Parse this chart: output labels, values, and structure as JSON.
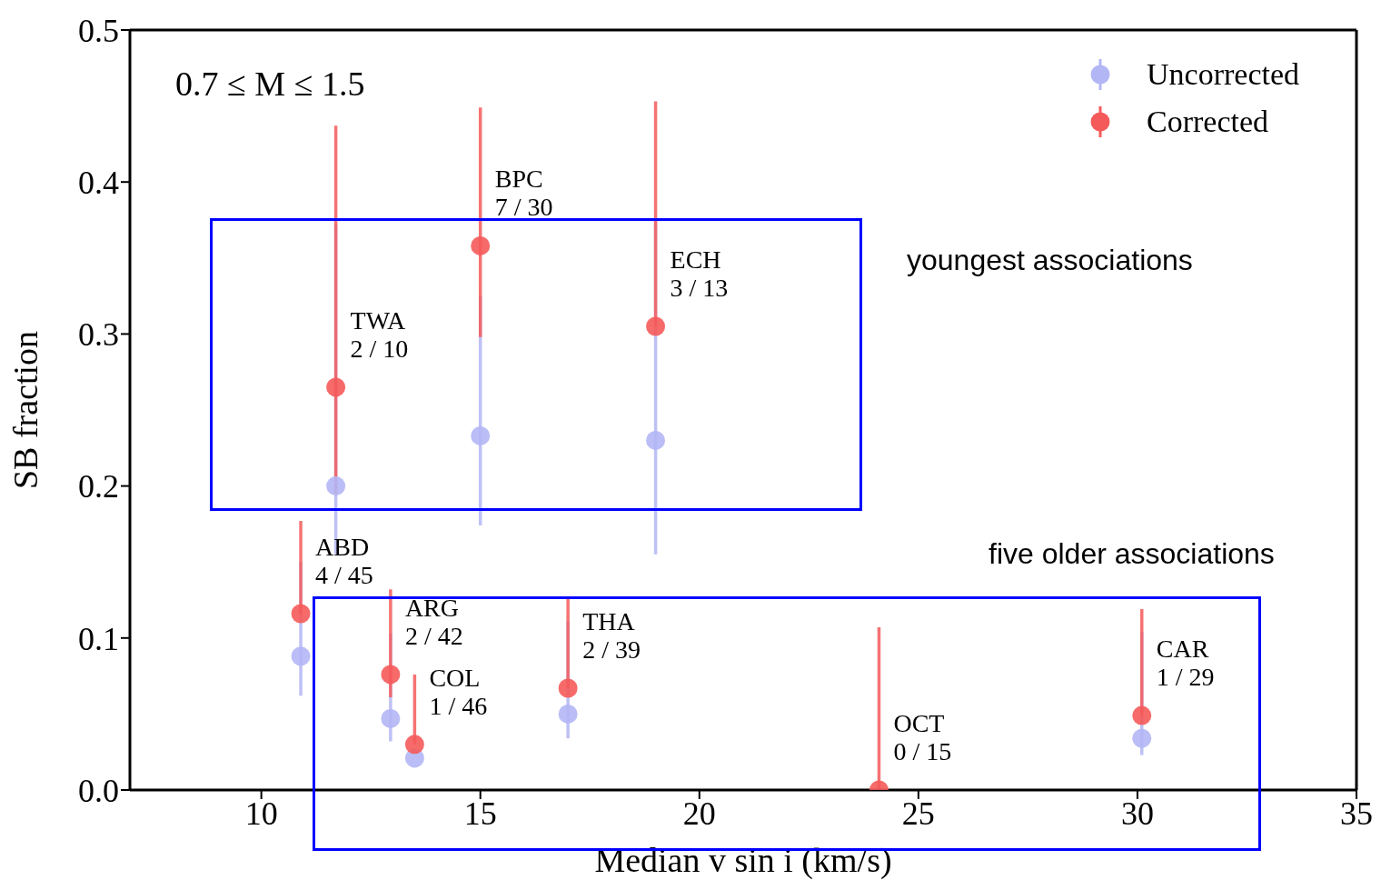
{
  "chart_data": {
    "type": "scatter",
    "xlabel": "Median v sin i (km/s)",
    "ylabel": "SB fraction",
    "x": [
      11.7,
      15.0,
      19.0,
      10.9,
      12.95,
      13.5,
      17.0,
      24.1,
      30.1
    ],
    "series": [
      {
        "name": "Uncorrected",
        "color": "#b3b6f5",
        "values": [
          0.2,
          0.233,
          0.23,
          0.088,
          0.047,
          0.021,
          0.05,
          null,
          0.034
        ],
        "errors": [
          [
            0.155,
            0.372
          ],
          [
            0.174,
            0.325
          ],
          [
            0.155,
            0.375
          ],
          [
            0.062,
            0.15
          ],
          [
            0.032,
            0.103
          ],
          null,
          [
            0.034,
            0.111
          ],
          null,
          [
            0.023,
            0.104
          ]
        ]
      },
      {
        "name": "Corrected",
        "color": "#f55a5a",
        "values": [
          0.265,
          0.358,
          0.305,
          0.116,
          0.076,
          0.03,
          0.067,
          0,
          0.049
        ],
        "errors": [
          [
            0.195,
            0.437
          ],
          [
            0.298,
            0.449
          ],
          [
            0.305,
            0.453
          ],
          [
            0.116,
            0.177
          ],
          [
            0.061,
            0.132
          ],
          [
            0.03,
            0.076
          ],
          [
            0.067,
            0.126
          ],
          [
            0,
            0.107
          ],
          [
            0.049,
            0.119
          ]
        ]
      }
    ],
    "xlim": [
      7,
      35
    ],
    "xticks": [
      10,
      15,
      20,
      25,
      30,
      35
    ],
    "ylim": [
      0,
      0.5
    ],
    "yticks": [
      {
        "value": 0,
        "label": "0.0"
      },
      {
        "value": 0.1,
        "label": "0.1"
      },
      {
        "value": 0.2,
        "label": "0.2"
      },
      {
        "value": 0.3,
        "label": "0.3"
      },
      {
        "value": 0.4,
        "label": "0.4"
      },
      {
        "value": 0.5,
        "label": "0.5"
      }
    ],
    "grid": false,
    "legend": "top right",
    "marker": "circle",
    "annotations": [
      "0.7 ≤ M ≤ 1.5",
      "youngest associations",
      "five older associations",
      {
        "text": "TWA\n2 / 10",
        "x": 11.7,
        "y": 0.265
      },
      {
        "text": "BPC\n7 / 30",
        "x": 15.0,
        "y": 0.358
      },
      {
        "text": "ECH\n3 / 13",
        "x": 19.0,
        "y": 0.305
      },
      {
        "text": "ABD\n4 / 45",
        "x": 10.9,
        "y": 0.116
      },
      {
        "text": "ARG\n2 / 42",
        "x": 12.95,
        "y": 0.076
      },
      {
        "text": "COL\n1 / 46",
        "x": 13.5,
        "y": 0.03
      },
      {
        "text": "THA\n2 / 39",
        "x": 17.0,
        "y": 0.067
      },
      {
        "text": "OCT\n0 / 15",
        "x": 24.1,
        "y": 0
      },
      {
        "text": "CAR\n1 / 29",
        "x": 30.1,
        "y": 0.049
      }
    ]
  }
}
